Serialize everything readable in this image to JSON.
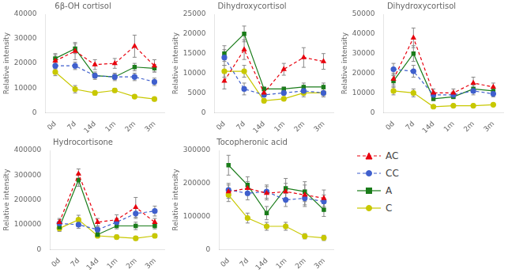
{
  "chart_data": [
    {
      "type": "line",
      "title": "6β-OH cortisol",
      "y_label": "Relative intensity",
      "categories": [
        "0d",
        "7d",
        "14d",
        "1m",
        "2m",
        "3m"
      ],
      "ylim": [
        0,
        40000
      ],
      "yticks": [
        0,
        10000,
        20000,
        30000,
        40000
      ],
      "grid": false,
      "series": [
        {
          "name": "AC",
          "color": "#e8000d",
          "marker": "triangle",
          "line_style": "dashed",
          "values": [
            21000,
            25000,
            19500,
            20000,
            27000,
            19000
          ],
          "errors": [
            2500,
            3500,
            2000,
            2000,
            4500,
            2500
          ]
        },
        {
          "name": "CC",
          "color": "#3f5fcd",
          "marker": "circle",
          "line_style": "dashed",
          "values": [
            19000,
            19000,
            15000,
            14500,
            14500,
            12500
          ],
          "errors": [
            1500,
            1500,
            1000,
            1000,
            1500,
            1500
          ]
        },
        {
          "name": "A",
          "color": "#1a7c1a",
          "marker": "square",
          "line_style": "solid",
          "values": [
            22000,
            26000,
            15000,
            14500,
            18500,
            18000
          ],
          "errors": [
            2000,
            2000,
            1500,
            1500,
            1500,
            1500
          ]
        },
        {
          "name": "C",
          "color": "#c8c800",
          "marker": "circle",
          "line_style": "solid",
          "values": [
            16500,
            9500,
            8000,
            9000,
            6500,
            5500
          ],
          "errors": [
            1500,
            1500,
            800,
            800,
            800,
            800
          ]
        }
      ]
    },
    {
      "type": "line",
      "title": "Dihydroxycortisol",
      "y_label": "Relative intensity",
      "categories": [
        "0d",
        "7d",
        "14d",
        "1m",
        "2m",
        "3m"
      ],
      "ylim": [
        0,
        25000
      ],
      "yticks": [
        0,
        5000,
        10000,
        15000,
        20000,
        25000
      ],
      "grid": false,
      "series": [
        {
          "name": "AC",
          "color": "#e8000d",
          "marker": "triangle",
          "line_style": "dashed",
          "values": [
            8000,
            16000,
            5000,
            11000,
            14000,
            13000
          ],
          "errors": [
            2000,
            2500,
            1000,
            1500,
            2500,
            2000
          ]
        },
        {
          "name": "CC",
          "color": "#3f5fcd",
          "marker": "circle",
          "line_style": "dashed",
          "values": [
            14000,
            6000,
            4500,
            5000,
            5500,
            5000
          ],
          "errors": [
            2000,
            1500,
            500,
            500,
            1000,
            1000
          ]
        },
        {
          "name": "A",
          "color": "#1a7c1a",
          "marker": "square",
          "line_style": "solid",
          "values": [
            15000,
            20000,
            6000,
            6000,
            6500,
            6500
          ],
          "errors": [
            2000,
            2000,
            500,
            500,
            1000,
            1000
          ]
        },
        {
          "name": "C",
          "color": "#c8c800",
          "marker": "circle",
          "line_style": "solid",
          "values": [
            10500,
            10500,
            3000,
            3500,
            5000,
            5000
          ],
          "errors": [
            1500,
            1500,
            500,
            500,
            1000,
            1000
          ]
        }
      ]
    },
    {
      "type": "line",
      "title": "Dihydroxycortisol",
      "y_label": "Relative intensity",
      "categories": [
        "0d",
        "7d",
        "14d",
        "1m",
        "2m",
        "3m"
      ],
      "ylim": [
        0,
        50000
      ],
      "yticks": [
        0,
        10000,
        20000,
        30000,
        40000,
        50000
      ],
      "grid": false,
      "series": [
        {
          "name": "AC",
          "color": "#e8000d",
          "marker": "triangle",
          "line_style": "dashed",
          "values": [
            17000,
            38000,
            10000,
            10000,
            15000,
            13000
          ],
          "errors": [
            3000,
            5000,
            2000,
            2000,
            3000,
            2000
          ]
        },
        {
          "name": "CC",
          "color": "#3f5fcd",
          "marker": "circle",
          "line_style": "dashed",
          "values": [
            22000,
            21000,
            9000,
            9000,
            11000,
            9500
          ],
          "errors": [
            3000,
            3000,
            1500,
            1500,
            2000,
            1500
          ]
        },
        {
          "name": "A",
          "color": "#1a7c1a",
          "marker": "square",
          "line_style": "solid",
          "values": [
            16000,
            30000,
            7000,
            8000,
            12000,
            11000
          ],
          "errors": [
            3000,
            4000,
            1000,
            1000,
            2000,
            2000
          ]
        },
        {
          "name": "C",
          "color": "#c8c800",
          "marker": "circle",
          "line_style": "solid",
          "values": [
            11000,
            10000,
            3000,
            3500,
            3500,
            4000
          ],
          "errors": [
            2000,
            2000,
            500,
            500,
            500,
            500
          ]
        }
      ]
    },
    {
      "type": "line",
      "title": "Hydrocortisone",
      "y_label": "Relative intensity",
      "categories": [
        "0d",
        "7d",
        "14d",
        "1m",
        "2m",
        "3m"
      ],
      "ylim": [
        0,
        400000
      ],
      "yticks": [
        0,
        100000,
        200000,
        300000,
        400000
      ],
      "grid": false,
      "series": [
        {
          "name": "AC",
          "color": "#e8000d",
          "marker": "triangle",
          "line_style": "dashed",
          "values": [
            110000,
            305000,
            110000,
            120000,
            170000,
            110000
          ],
          "errors": [
            15000,
            20000,
            15000,
            20000,
            40000,
            15000
          ]
        },
        {
          "name": "CC",
          "color": "#3f5fcd",
          "marker": "circle",
          "line_style": "dashed",
          "values": [
            105000,
            100000,
            80000,
            110000,
            145000,
            155000
          ],
          "errors": [
            15000,
            15000,
            10000,
            15000,
            20000,
            20000
          ]
        },
        {
          "name": "A",
          "color": "#1a7c1a",
          "marker": "square",
          "line_style": "solid",
          "values": [
            90000,
            280000,
            60000,
            95000,
            95000,
            95000
          ],
          "errors": [
            15000,
            25000,
            10000,
            12000,
            15000,
            12000
          ]
        },
        {
          "name": "C",
          "color": "#c8c800",
          "marker": "circle",
          "line_style": "solid",
          "values": [
            85000,
            120000,
            55000,
            50000,
            45000,
            55000
          ],
          "errors": [
            12000,
            18000,
            8000,
            8000,
            8000,
            8000
          ]
        }
      ]
    },
    {
      "type": "line",
      "title": "Tocopheronic acid",
      "y_label": "Relative intensity",
      "categories": [
        "0d",
        "7d",
        "14d",
        "1m",
        "2m",
        "3m"
      ],
      "ylim": [
        0,
        300000
      ],
      "yticks": [
        0,
        100000,
        200000,
        300000
      ],
      "grid": false,
      "series": [
        {
          "name": "AC",
          "color": "#e8000d",
          "marker": "triangle",
          "line_style": "dashed",
          "values": [
            175000,
            185000,
            170000,
            175000,
            165000,
            155000
          ],
          "errors": [
            20000,
            20000,
            20000,
            25000,
            30000,
            25000
          ]
        },
        {
          "name": "CC",
          "color": "#3f5fcd",
          "marker": "circle",
          "line_style": "dashed",
          "values": [
            180000,
            170000,
            175000,
            150000,
            155000,
            145000
          ],
          "errors": [
            20000,
            20000,
            20000,
            20000,
            25000,
            20000
          ]
        },
        {
          "name": "A",
          "color": "#1a7c1a",
          "marker": "square",
          "line_style": "solid",
          "values": [
            255000,
            195000,
            110000,
            185000,
            175000,
            120000
          ],
          "errors": [
            30000,
            25000,
            20000,
            30000,
            30000,
            20000
          ]
        },
        {
          "name": "C",
          "color": "#c8c800",
          "marker": "circle",
          "line_style": "solid",
          "values": [
            165000,
            95000,
            70000,
            70000,
            40000,
            35000
          ],
          "errors": [
            20000,
            15000,
            12000,
            12000,
            8000,
            8000
          ]
        }
      ]
    }
  ]
}
